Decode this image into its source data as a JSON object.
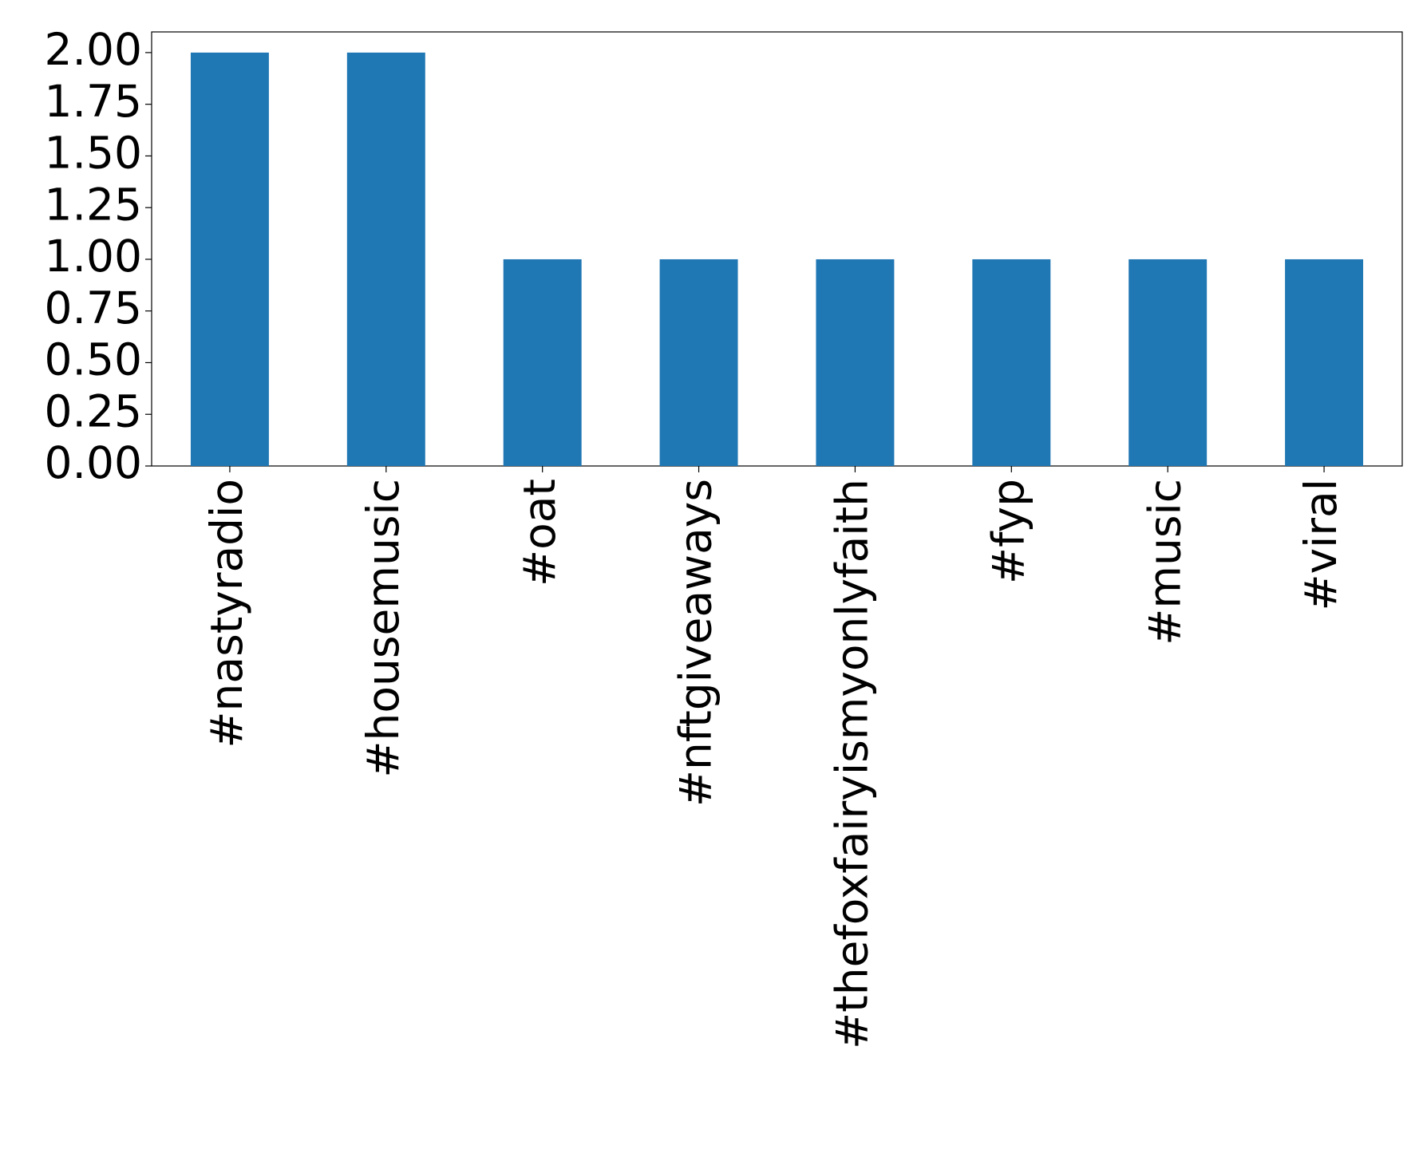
{
  "chart_data": {
    "type": "bar",
    "categories": [
      "#nastyradio",
      "#housemusic",
      "#oat",
      "#nftgiveaways",
      "#thefoxfairyismyonlyfaith",
      "#fyp",
      "#music",
      "#viral"
    ],
    "values": [
      2,
      2,
      1,
      1,
      1,
      1,
      1,
      1
    ],
    "color": "#1f77b4",
    "ylim": [
      0,
      2.1
    ],
    "yticks": [
      {
        "value": 0,
        "label": "0.00"
      },
      {
        "value": 0.25,
        "label": "0.25"
      },
      {
        "value": 0.5,
        "label": "0.50"
      },
      {
        "value": 0.75,
        "label": "0.75"
      },
      {
        "value": 1,
        "label": "1.00"
      },
      {
        "value": 1.25,
        "label": "1.25"
      },
      {
        "value": 1.5,
        "label": "1.50"
      },
      {
        "value": 1.75,
        "label": "1.75"
      },
      {
        "value": 2,
        "label": "2.00"
      }
    ],
    "grid": false
  }
}
